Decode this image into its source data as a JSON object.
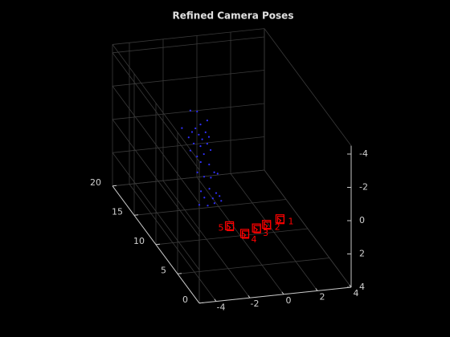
{
  "chart_data": {
    "type": "scatter3d",
    "title": "Refined Camera Poses",
    "xlim": [
      -5,
      4
    ],
    "ylim": [
      0,
      20
    ],
    "zlim": [
      -4.5,
      4
    ],
    "xticks": [
      -4,
      -2,
      0,
      2,
      4
    ],
    "yticks": [
      0,
      5,
      10,
      15,
      20
    ],
    "zticks": [
      -4,
      -2,
      0,
      2,
      4
    ],
    "z_reversed": true,
    "grid": true,
    "points": {
      "color": "#3030ff",
      "x": [
        -0.9,
        -0.5,
        -1.4,
        -0.6,
        -0.3,
        0.1,
        -0.8,
        -0.4,
        0.0,
        -1.0,
        -0.2,
        0.2,
        -0.7,
        -0.3,
        0.1,
        -0.9,
        0.3,
        -0.1,
        -0.5,
        -0.8,
        -0.3,
        -1.0,
        0.0,
        -0.6,
        -0.2,
        0.2,
        -1.3,
        -0.8,
        -0.4,
        -1.1,
        -0.6,
        -0.2,
        -1.4,
        -0.9,
        -0.5,
        -0.1
      ],
      "y": [
        18,
        18,
        18,
        18,
        18,
        18,
        18,
        18,
        18,
        18,
        18,
        18,
        18,
        18,
        18,
        18,
        18,
        18,
        18,
        16,
        16,
        16,
        16,
        16,
        16,
        16,
        14,
        14,
        14,
        14,
        14,
        14,
        14,
        14,
        14,
        14
      ],
      "z": [
        -0.8,
        -0.7,
        0.2,
        0.3,
        0.1,
        -0.1,
        0.5,
        0.7,
        0.6,
        0.8,
        1.0,
        0.9,
        1.2,
        1.4,
        1.3,
        1.6,
        1.7,
        1.9,
        2.0,
        1.6,
        1.8,
        2.2,
        2.3,
        2.5,
        2.6,
        2.4,
        2.6,
        2.5,
        2.8,
        3.0,
        3.1,
        3.0,
        3.4,
        3.5,
        3.4,
        3.3
      ]
    },
    "cameras": {
      "color": "#ff0000",
      "labels": [
        "1",
        "2",
        "3",
        "4",
        "5"
      ],
      "x": [
        0.4,
        -0.5,
        -1.2,
        -2.0,
        -2.8
      ],
      "y": [
        2.4,
        2.0,
        1.6,
        1.2,
        1.6
      ],
      "z": [
        0.4,
        0.5,
        0.5,
        0.6,
        0.2
      ]
    }
  }
}
